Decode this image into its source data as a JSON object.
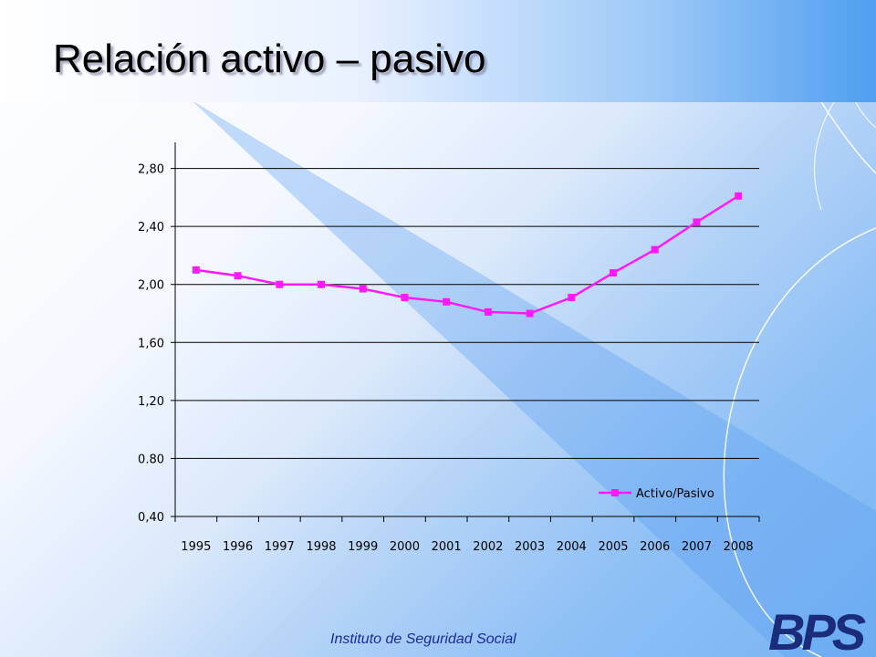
{
  "slide": {
    "title": "Relación activo – pasivo",
    "footer": "Instituto de Seguridad Social",
    "logo_text": "BPS"
  },
  "colors": {
    "series": "#ff19ff",
    "axis": "#000000",
    "footer": "#1a2a9a"
  },
  "chart_data": {
    "type": "line",
    "title": "",
    "xlabel": "",
    "ylabel": "",
    "categories": [
      "1995",
      "1996",
      "1997",
      "1998",
      "1999",
      "2000",
      "2001",
      "2002",
      "2003",
      "2004",
      "2005",
      "2006",
      "2007",
      "2008"
    ],
    "ylim": [
      0.4,
      2.98
    ],
    "y_ticks": [
      0.4,
      0.8,
      1.2,
      1.6,
      2.0,
      2.4,
      2.8
    ],
    "y_tick_labels": [
      "0,40",
      "0.80",
      "1,20",
      "1,60",
      "2,00",
      "2,40",
      "2,80"
    ],
    "grid": true,
    "legend_position": "bottom-right",
    "series": [
      {
        "name": "Activo/Pasivo",
        "values": [
          2.1,
          2.06,
          2.0,
          2.0,
          1.97,
          1.91,
          1.88,
          1.81,
          1.8,
          1.91,
          2.08,
          2.24,
          2.43,
          2.61
        ]
      }
    ]
  }
}
